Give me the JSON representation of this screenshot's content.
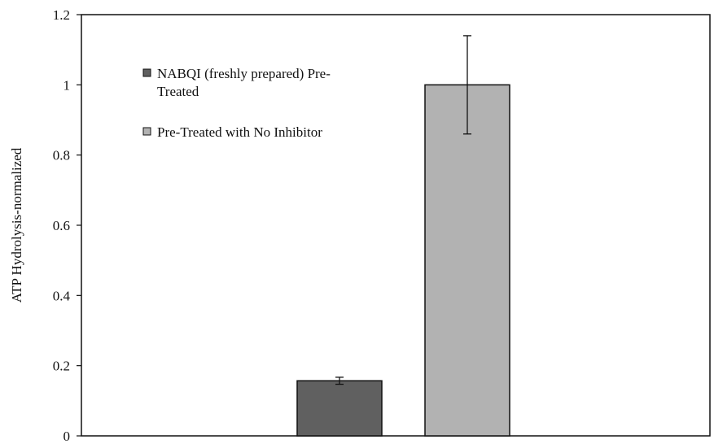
{
  "chart_data": {
    "type": "bar",
    "title": "",
    "xlabel": "",
    "ylabel": "ATP Hydrolysis-normalized",
    "ylim": [
      0,
      1.2
    ],
    "yticks": [
      {
        "value": 0,
        "label": "0"
      },
      {
        "value": 0.2,
        "label": "0.2"
      },
      {
        "value": 0.4,
        "label": "0.4"
      },
      {
        "value": 0.6,
        "label": "0.6"
      },
      {
        "value": 0.8,
        "label": "0.8"
      },
      {
        "value": 1.0,
        "label": "1"
      },
      {
        "value": 1.2,
        "label": "1.2"
      }
    ],
    "grid": false,
    "legend_position": "top-left",
    "series": [
      {
        "name": "NABQI (freshly prepared) Pre-Treated",
        "legend_lines": [
          "NABQI (freshly prepared) Pre-",
          "Treated"
        ],
        "value": 0.157,
        "error": 0.01,
        "color": "#606060"
      },
      {
        "name": "Pre-Treated with No Inhibitor",
        "legend_lines": [
          "Pre-Treated with No Inhibitor"
        ],
        "value": 1.0,
        "error": 0.14,
        "color": "#b2b2b2"
      }
    ]
  }
}
